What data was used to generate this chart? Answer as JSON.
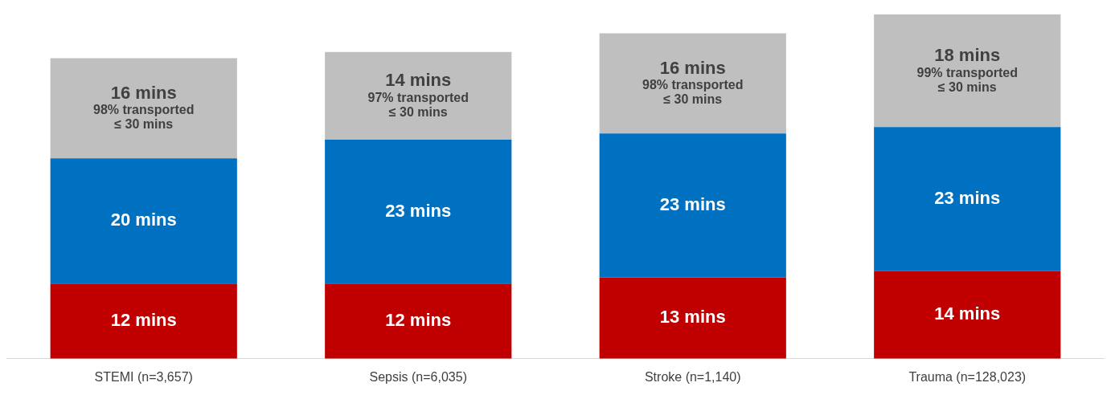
{
  "chart_data": {
    "type": "bar",
    "stacked": true,
    "categories": [
      "STEMI (n=3,657)",
      "Sepsis (n=6,035)",
      "Stroke (n=1,140)",
      "Trauma (n=128,023)"
    ],
    "series": [
      {
        "color": "#c00000",
        "values": [
          12,
          12,
          13,
          14
        ],
        "value_labels": [
          "12 mins",
          "12 mins",
          "13 mins",
          "14 mins"
        ]
      },
      {
        "color": "#0070c0",
        "values": [
          20,
          23,
          23,
          23
        ],
        "value_labels": [
          "20 mins",
          "23 mins",
          "23 mins",
          "23 mins"
        ]
      },
      {
        "color": "#bfbfbf",
        "values": [
          16,
          14,
          16,
          18
        ],
        "value_labels": [
          "16 mins\n98% transported\n≤ 30 mins",
          "14 mins\n97% transported\n≤ 30 mins",
          "16 mins\n98% transported\n≤ 30 mins",
          "18 mins\n99% transported\n≤ 30 mins"
        ]
      }
    ],
    "grid": false,
    "legend": false
  }
}
